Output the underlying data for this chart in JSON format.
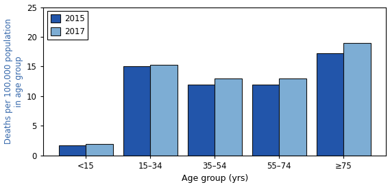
{
  "categories": [
    "<15",
    "15–34",
    "35–54",
    "55–74",
    "≥75"
  ],
  "values_2015": [
    1.7,
    15.0,
    12.0,
    12.0,
    17.2
  ],
  "values_2017": [
    1.9,
    15.3,
    13.0,
    13.0,
    19.0
  ],
  "bar_color_2015": "#2255aa",
  "bar_color_2017": "#7dadd4",
  "bar_edgecolor": "#111111",
  "bar_width": 0.42,
  "xlabel": "Age group (yrs)",
  "ylabel": "Deaths per 100,000 population\nin age group",
  "ylim": [
    0,
    25
  ],
  "yticks": [
    0,
    5,
    10,
    15,
    20,
    25
  ],
  "legend_labels": [
    "2015",
    "2017"
  ],
  "xlabel_color": "black",
  "ylabel_color": "#3366aa",
  "tick_label_color": "black",
  "title": "",
  "figsize": [
    5.69,
    2.74
  ],
  "dpi": 100
}
